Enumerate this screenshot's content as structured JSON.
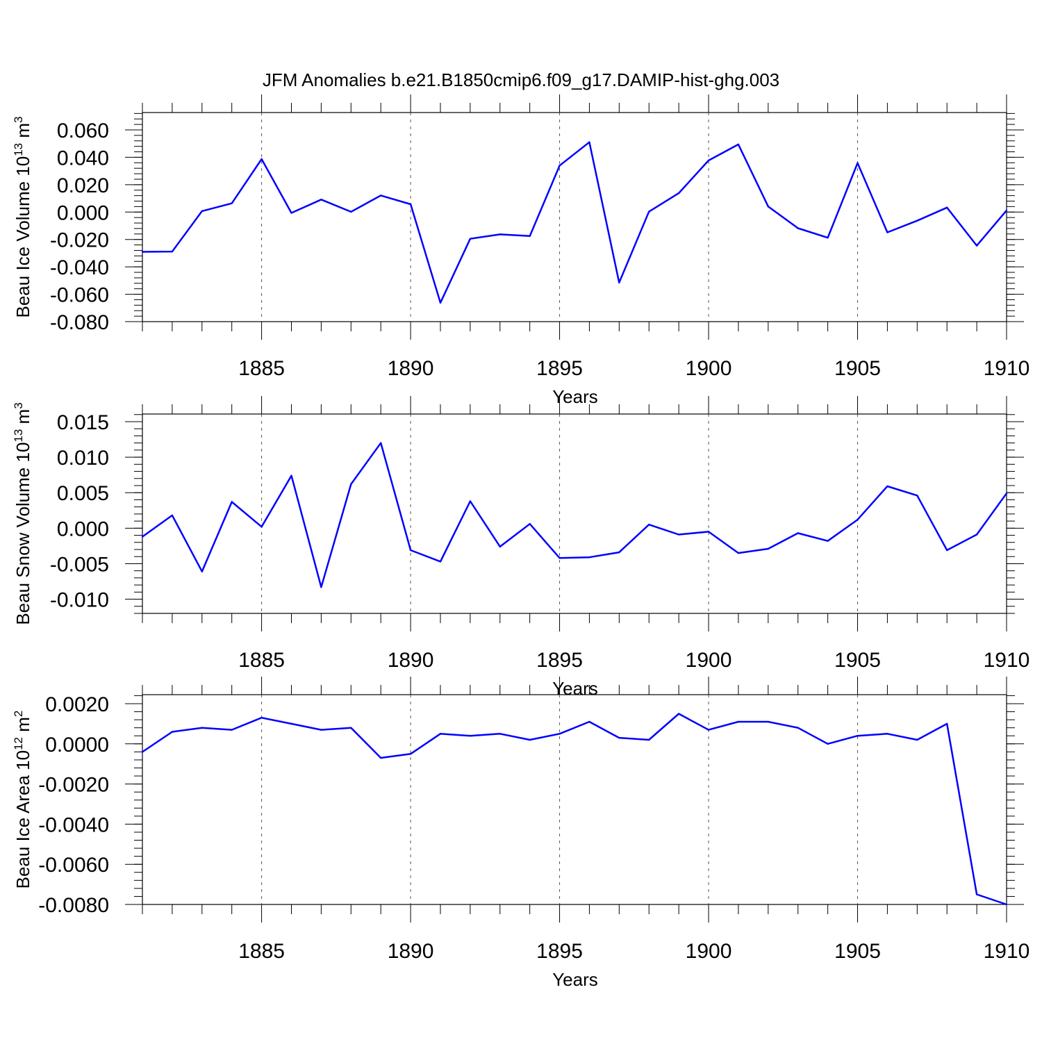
{
  "title": "JFM Anomalies b.e21.B1850cmip6.f09_g17.DAMIP-hist-ghg.003",
  "line_color": "#0000ff",
  "chart_data": [
    {
      "type": "line",
      "ylabel": "Beau Ice Volume 10",
      "ylabel_exp": "13",
      "ylabel_unit": " m",
      "ylabel_unit_exp": "3",
      "xlabel": "Years",
      "xlim": [
        1881,
        1910
      ],
      "ylim": [
        -0.08,
        0.07
      ],
      "x_ticks": [
        1885,
        1890,
        1895,
        1900,
        1905,
        1910
      ],
      "x_tick_labels": [
        "1885",
        "1890",
        "1895",
        "1900",
        "1905",
        "1910"
      ],
      "y_ticks": [
        0.06,
        0.04,
        0.02,
        0.0,
        -0.02,
        -0.04,
        -0.06,
        -0.08
      ],
      "y_tick_labels": [
        "0.060",
        "0.040",
        "0.020",
        "0.000",
        "-0.020",
        "-0.040",
        "-0.060",
        "-0.080"
      ],
      "y_minor_step": 0.004,
      "series": [
        {
          "name": "Beau Ice Volume",
          "x": [
            1881,
            1882,
            1883,
            1884,
            1885,
            1886,
            1887,
            1888,
            1889,
            1890,
            1891,
            1892,
            1893,
            1894,
            1895,
            1896,
            1897,
            1898,
            1899,
            1900,
            1901,
            1902,
            1903,
            1904,
            1905,
            1906,
            1907,
            1908,
            1909,
            1910
          ],
          "values": [
            -0.029,
            -0.0288,
            0.0007,
            0.0064,
            0.0387,
            -0.0006,
            0.0091,
            0.0002,
            0.0121,
            0.0057,
            -0.0662,
            -0.0195,
            -0.0163,
            -0.0175,
            0.034,
            0.051,
            -0.0515,
            0.0003,
            0.0138,
            0.0377,
            0.0494,
            0.0041,
            -0.0118,
            -0.0187,
            0.0358,
            -0.0148,
            -0.0063,
            0.0033,
            -0.0245,
            0.0012
          ]
        }
      ]
    },
    {
      "type": "line",
      "ylabel": "Beau Snow Volume 10",
      "ylabel_exp": "13",
      "ylabel_unit": " m",
      "ylabel_unit_exp": "3",
      "xlabel": "Years",
      "xlim": [
        1881,
        1910
      ],
      "ylim": [
        -0.012,
        0.016
      ],
      "x_ticks": [
        1885,
        1890,
        1895,
        1900,
        1905,
        1910
      ],
      "x_tick_labels": [
        "1885",
        "1890",
        "1895",
        "1900",
        "1905",
        "1910"
      ],
      "y_ticks": [
        0.015,
        0.01,
        0.005,
        0.0,
        -0.005,
        -0.01
      ],
      "y_tick_labels": [
        "0.015",
        "0.010",
        "0.005",
        "0.000",
        "-0.005",
        "-0.010"
      ],
      "y_minor_step": 0.001,
      "series": [
        {
          "name": "Beau Snow Volume",
          "x": [
            1881,
            1882,
            1883,
            1884,
            1885,
            1886,
            1887,
            1888,
            1889,
            1890,
            1891,
            1892,
            1893,
            1894,
            1895,
            1896,
            1897,
            1898,
            1899,
            1900,
            1901,
            1902,
            1903,
            1904,
            1905,
            1906,
            1907,
            1908,
            1909,
            1910
          ],
          "values": [
            -0.0012,
            0.0018,
            -0.0061,
            0.0037,
            0.0002,
            0.0074,
            -0.0083,
            0.0062,
            0.012,
            -0.0031,
            -0.0047,
            0.0038,
            -0.0026,
            0.0006,
            -0.0042,
            -0.0041,
            -0.0034,
            0.0005,
            -0.0009,
            -0.0005,
            -0.0035,
            -0.0029,
            -0.0007,
            -0.0018,
            0.0012,
            0.0059,
            0.0046,
            -0.0031,
            -0.0009,
            0.0049
          ]
        }
      ]
    },
    {
      "type": "line",
      "ylabel": "Beau Ice Area 10",
      "ylabel_exp": "12",
      "ylabel_unit": " m",
      "ylabel_unit_exp": "2",
      "xlabel": "Years",
      "xlim": [
        1881,
        1910
      ],
      "ylim": [
        -0.008,
        0.0025
      ],
      "x_ticks": [
        1885,
        1890,
        1895,
        1900,
        1905,
        1910
      ],
      "x_tick_labels": [
        "1885",
        "1890",
        "1895",
        "1900",
        "1905",
        "1910"
      ],
      "y_ticks": [
        0.002,
        0.0,
        -0.002,
        -0.004,
        -0.006,
        -0.008
      ],
      "y_tick_labels": [
        "0.0020",
        "0.0000",
        "-0.0020",
        "-0.0040",
        "-0.0060",
        "-0.0080"
      ],
      "y_minor_step": 0.0004,
      "series": [
        {
          "name": "Beau Ice Area",
          "x": [
            1881,
            1882,
            1883,
            1884,
            1885,
            1886,
            1887,
            1888,
            1889,
            1890,
            1891,
            1892,
            1893,
            1894,
            1895,
            1896,
            1897,
            1898,
            1899,
            1900,
            1901,
            1902,
            1903,
            1904,
            1905,
            1906,
            1907,
            1908,
            1909,
            1910
          ],
          "values": [
            -0.0004,
            0.0006,
            0.0008,
            0.0007,
            0.0013,
            0.001,
            0.0007,
            0.0008,
            -0.0007,
            -0.0005,
            0.0005,
            0.0004,
            0.0005,
            0.0002,
            0.0005,
            0.0011,
            0.0003,
            0.0002,
            0.0015,
            0.0007,
            0.0011,
            0.0011,
            0.0008,
            0.0,
            0.0004,
            0.0005,
            0.0002,
            0.001,
            -0.0075,
            -0.008
          ]
        }
      ]
    }
  ]
}
